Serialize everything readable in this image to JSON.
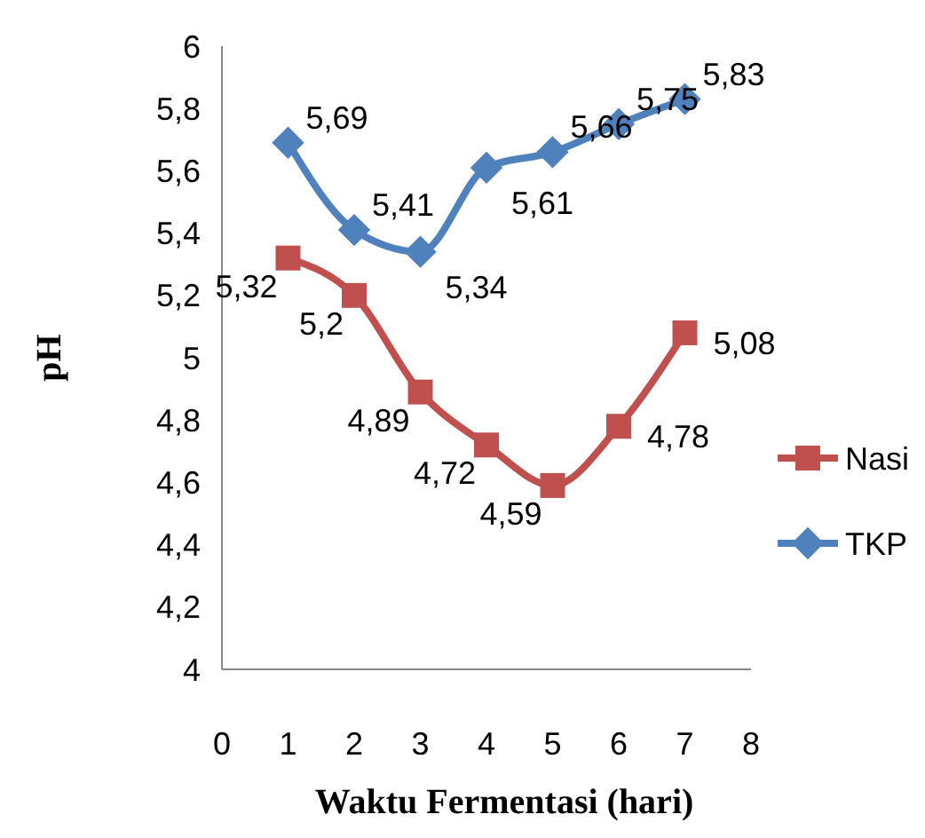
{
  "chart_data": {
    "type": "line",
    "xlabel": "Waktu Fermentasi (hari)",
    "ylabel": "pH",
    "x": [
      1,
      2,
      3,
      4,
      5,
      6,
      7
    ],
    "series": [
      {
        "name": "Nasi",
        "color": "#c0504d",
        "marker": "square",
        "values": [
          5.32,
          5.2,
          4.89,
          4.72,
          4.59,
          4.78,
          5.08
        ],
        "value_labels": [
          "5,32",
          "5,2",
          "4,89",
          "4,72",
          "4,59",
          "4,78",
          "5,08"
        ]
      },
      {
        "name": "TKP",
        "color": "#4f81bd",
        "marker": "diamond",
        "values": [
          5.69,
          5.41,
          5.34,
          5.61,
          5.66,
          5.75,
          5.83
        ],
        "value_labels": [
          "5,69",
          "5,41",
          "5,34",
          "5,61",
          "5,66",
          "5,75",
          "5,83"
        ]
      }
    ],
    "xlim": [
      0,
      8
    ],
    "xticks": [
      0,
      1,
      2,
      3,
      4,
      5,
      6,
      7,
      8
    ],
    "ylim": [
      4,
      6
    ],
    "yticks": [
      4,
      {
        "value": 4.2,
        "label": "4,2"
      },
      {
        "value": 4.4,
        "label": "4,4"
      },
      {
        "value": 4.6,
        "label": "4,6"
      },
      {
        "value": 4.8,
        "label": "4,8"
      },
      5,
      {
        "value": 5.2,
        "label": "5,2"
      },
      {
        "value": 5.4,
        "label": "5,4"
      },
      {
        "value": 5.6,
        "label": "5,6"
      },
      {
        "value": 5.8,
        "label": "5,8"
      },
      6
    ],
    "grid": false,
    "legend": "right"
  }
}
